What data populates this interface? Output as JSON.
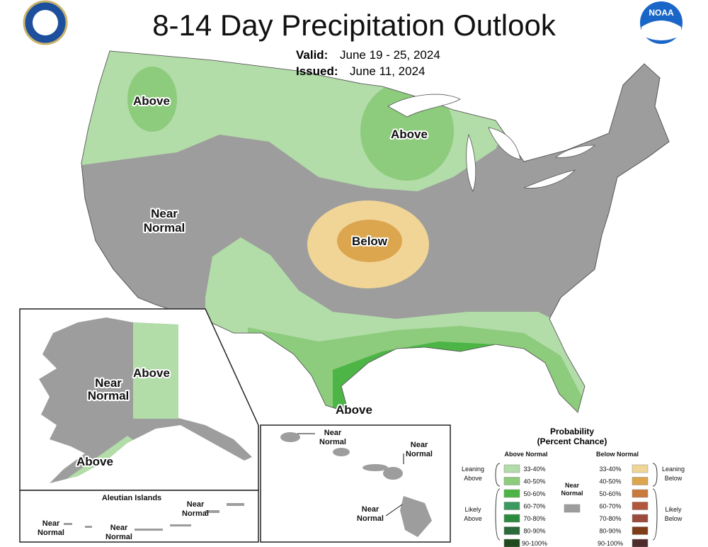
{
  "header": {
    "title": "8-14 Day Precipitation Outlook",
    "valid_label": "Valid:",
    "valid": "June 19 - 25, 2024",
    "issued_label": "Issued:",
    "issued": "June 11, 2024",
    "noaa_logo": "NOAA"
  },
  "map_labels": {
    "conus": [
      [
        "Above"
      ],
      [
        "Above"
      ],
      [
        "Near",
        "Normal"
      ],
      [
        "Below"
      ],
      [
        "Above"
      ]
    ],
    "alaska": [
      [
        "Near",
        "Normal"
      ],
      [
        "Above"
      ],
      [
        "Above"
      ]
    ],
    "aleutian_title": "Aleutian Islands",
    "aleutian": [
      [
        "Near",
        "Normal"
      ],
      [
        "Near",
        "Normal"
      ],
      [
        "Near",
        "Normal"
      ]
    ],
    "hawaii": [
      [
        "Near",
        "Normal"
      ],
      [
        "Near",
        "Normal"
      ],
      [
        "Near",
        "Normal"
      ]
    ]
  },
  "legend": {
    "title": "Probability",
    "subtitle": "(Percent Chance)",
    "above_header": "Above Normal",
    "below_header": "Below Normal",
    "above": [
      {
        "label": "33-40%",
        "color": "#b2dca8"
      },
      {
        "label": "40-50%",
        "color": "#8ccc7c"
      },
      {
        "label": "50-60%",
        "color": "#4db446"
      },
      {
        "label": "60-70%",
        "color": "#3a9a5e"
      },
      {
        "label": "70-80%",
        "color": "#2a8b3e"
      },
      {
        "label": "80-90%",
        "color": "#2b6a3a"
      },
      {
        "label": "90-100%",
        "color": "#1f4a1c"
      }
    ],
    "below": [
      {
        "label": "33-40%",
        "color": "#f1d596"
      },
      {
        "label": "40-50%",
        "color": "#dca64f"
      },
      {
        "label": "50-60%",
        "color": "#c97a3c"
      },
      {
        "label": "60-70%",
        "color": "#b0573c"
      },
      {
        "label": "70-80%",
        "color": "#9b4a3b"
      },
      {
        "label": "80-90%",
        "color": "#7e3c17"
      },
      {
        "label": "90-100%",
        "color": "#4f2b2b"
      }
    ],
    "near_normal": {
      "label": [
        "Near",
        "Normal"
      ],
      "color": "#9d9d9d"
    },
    "leaning_above": [
      "Leaning",
      "Above"
    ],
    "likely_above": [
      "Likely",
      "Above"
    ],
    "leaning_below": [
      "Leaning",
      "Below"
    ],
    "likely_below": [
      "Likely",
      "Below"
    ]
  }
}
